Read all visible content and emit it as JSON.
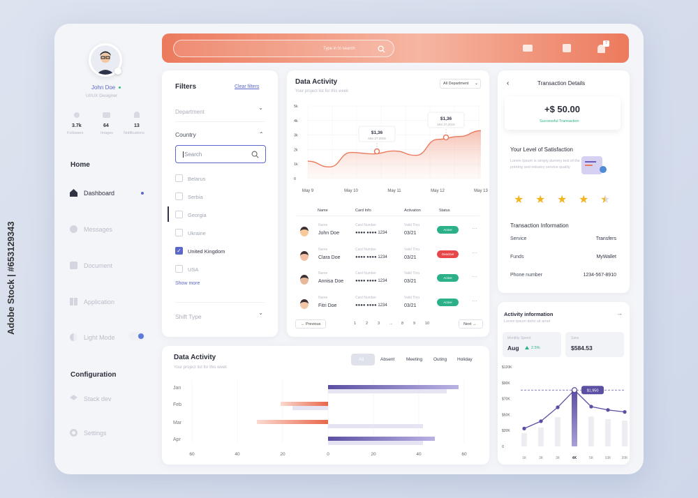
{
  "profile": {
    "name": "John Doe",
    "role": "UI/UX Designer",
    "stats": [
      {
        "value": "3.7k",
        "label": "Followers"
      },
      {
        "value": "64",
        "label": "Images"
      },
      {
        "value": "13",
        "label": "Notifications"
      }
    ]
  },
  "nav": {
    "home": "Home",
    "items": [
      "Dashboard",
      "Messages",
      "Document",
      "Application",
      "Light Mode"
    ],
    "config": "Configuration",
    "config_items": [
      "Stack dev",
      "Settings"
    ]
  },
  "topbar": {
    "search_placeholder": "Type in to search",
    "notif_count": "7"
  },
  "filters": {
    "title": "Filters",
    "clear": "Clear filters",
    "department": "Department",
    "country": "Country",
    "search_placeholder": "Search",
    "countries": [
      {
        "name": "Belarus",
        "checked": false
      },
      {
        "name": "Serbia",
        "checked": false
      },
      {
        "name": "Georgia",
        "checked": false
      },
      {
        "name": "Ukraine",
        "checked": false
      },
      {
        "name": "United Kingdom",
        "checked": true
      },
      {
        "name": "USA",
        "checked": false
      }
    ],
    "show_more": "Show more",
    "shift_type": "Shift Type"
  },
  "activity": {
    "title": "Data Activity",
    "subtitle": "Your project list for this week",
    "dropdown": "All Department",
    "chart_data": {
      "type": "area",
      "x": [
        "May 9",
        "",
        "May 10",
        "",
        "May 11",
        "",
        "May 12",
        "",
        "May 13"
      ],
      "y": [
        1.2,
        0.8,
        1.8,
        1.7,
        1.9,
        1.6,
        2.7,
        2.9,
        3.3
      ],
      "ylim": [
        0,
        5
      ],
      "yticks": [
        "5k",
        "4k",
        "3k",
        "2k",
        "1k",
        "0"
      ],
      "annotations": [
        {
          "label": "$1,36",
          "date": "Mar 27,2019",
          "x": "May 10/11"
        },
        {
          "label": "$1,36",
          "date": "Mar 27,2019",
          "x": "May 12"
        }
      ]
    }
  },
  "table": {
    "headers": [
      "Name",
      "Card Info",
      "Activation",
      "Status"
    ],
    "name_label": "Name",
    "card_label": "Card Number",
    "valid_label": "Valid Thru",
    "rows": [
      {
        "name": "John Doe",
        "card": "●●●● ●●●● 1234",
        "valid": "03/21",
        "status": "Active",
        "color": "#2bb08a"
      },
      {
        "name": "Clara Doe",
        "card": "●●●● ●●●● 1234",
        "valid": "03/21",
        "status": "Deactive",
        "color": "#e8474a"
      },
      {
        "name": "Annisa Doe",
        "card": "●●●● ●●●● 1234",
        "valid": "03/21",
        "status": "Active",
        "color": "#2bb08a"
      },
      {
        "name": "Fitri Doe",
        "card": "●●●● ●●●● 1234",
        "valid": "03/21",
        "status": "Active",
        "color": "#2bb08a"
      }
    ],
    "pagination": {
      "previous": "Previous",
      "next": "Next",
      "pages": [
        "1",
        "2",
        "3",
        "...",
        "8",
        "9",
        "10"
      ]
    }
  },
  "transaction": {
    "title": "Transaction Details",
    "amount": "+$ 50.00",
    "status": "Successful Transaction",
    "satisfaction": "Your Level of Satisfaction",
    "lorem": "Lorem Ipsum is simply dummy text of the printing and industry service quality",
    "rating": 4.5,
    "info_title": "Transaction Information",
    "info": [
      {
        "label": "Service",
        "value": "Transfers"
      },
      {
        "label": "Funds",
        "value": "MyWallet"
      },
      {
        "label": "Phone number",
        "value": "1234-567-8910"
      }
    ]
  },
  "activity2": {
    "title": "Data Activity",
    "subtitle": "Your project list for this week",
    "tabs": [
      "All",
      "Absent",
      "Meeting",
      "Outing",
      "Holiday"
    ],
    "chart_data": {
      "type": "bar",
      "orientation": "horizontal",
      "categories": [
        "Jan",
        "Feb",
        "Mar",
        "Apr"
      ],
      "series": [
        {
          "values": [
            55,
            -20,
            -30,
            45
          ],
          "color": "#5b4fa3"
        },
        {
          "values": [
            50,
            -15,
            40,
            40
          ],
          "color": "#e87b5f"
        }
      ],
      "xticks": [
        "60",
        "40",
        "20",
        "0",
        "20",
        "40",
        "60"
      ]
    }
  },
  "info": {
    "title": "Activity information",
    "subtitle": "Lorem ipsum dolor sit amet",
    "month_label": "Monthly Spend",
    "month": "Aug",
    "change": "2.5%",
    "save_label": "Save",
    "save_value": "$584.53",
    "chart_data": {
      "type": "line",
      "x": [
        "1K",
        "3K",
        "3K",
        "4K",
        "5K",
        "10K",
        "20K"
      ],
      "y": [
        27,
        38,
        59,
        85,
        60,
        55,
        52
      ],
      "ylim": [
        0,
        120
      ],
      "yticks": [
        "$120K",
        "$90K",
        "$70K",
        "$50K",
        "$20K",
        "0"
      ],
      "highlight": {
        "x": "4K",
        "label": "$1,950"
      }
    }
  }
}
